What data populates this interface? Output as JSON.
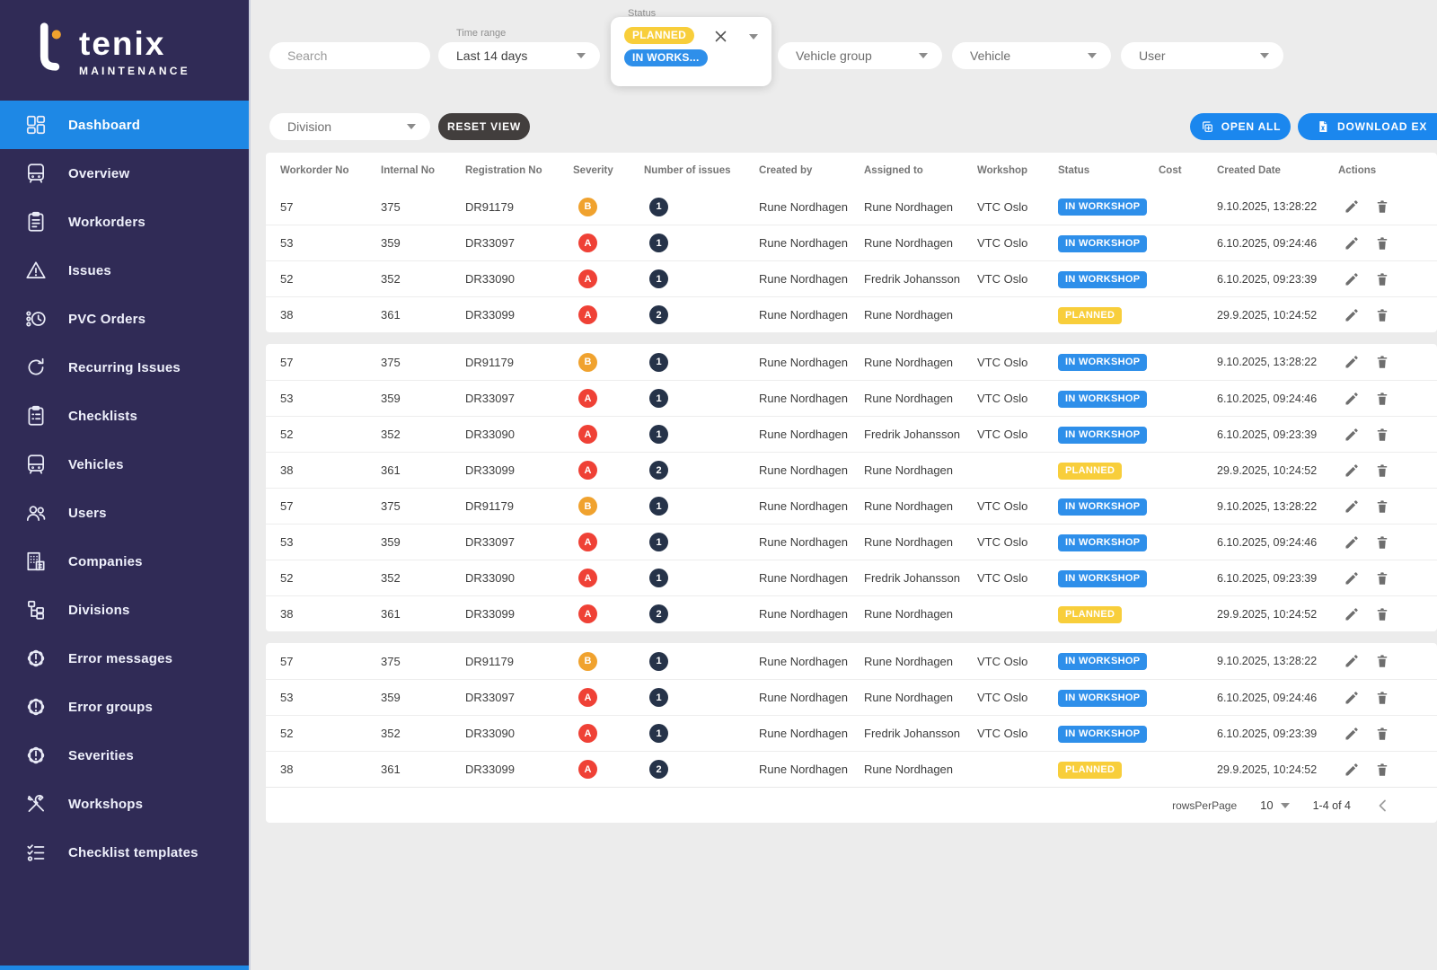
{
  "brand": {
    "name": "tenix",
    "subtitle": "MAINTENANCE"
  },
  "sidebar": {
    "items": [
      {
        "id": "dashboard",
        "label": "Dashboard",
        "icon": "dashboard",
        "active": true
      },
      {
        "id": "overview",
        "label": "Overview",
        "icon": "bus",
        "active": false
      },
      {
        "id": "workorders",
        "label": "Workorders",
        "icon": "clipboard",
        "active": false
      },
      {
        "id": "issues",
        "label": "Issues",
        "icon": "warning-triangle",
        "active": false
      },
      {
        "id": "pvc-orders",
        "label": "PVC Orders",
        "icon": "fan-clock",
        "active": false
      },
      {
        "id": "recurring-issues",
        "label": "Recurring Issues",
        "icon": "refresh",
        "active": false
      },
      {
        "id": "checklists",
        "label": "Checklists",
        "icon": "checklist-board",
        "active": false
      },
      {
        "id": "vehicles",
        "label": "Vehicles",
        "icon": "bus",
        "active": false
      },
      {
        "id": "users",
        "label": "Users",
        "icon": "users",
        "active": false
      },
      {
        "id": "companies",
        "label": "Companies",
        "icon": "building",
        "active": false
      },
      {
        "id": "divisions",
        "label": "Divisions",
        "icon": "org-tree",
        "active": false
      },
      {
        "id": "error-messages",
        "label": "Error messages",
        "icon": "badge-exclamation",
        "active": false
      },
      {
        "id": "error-groups",
        "label": "Error groups",
        "icon": "badge-exclamation",
        "active": false
      },
      {
        "id": "severities",
        "label": "Severities",
        "icon": "badge-exclamation",
        "active": false
      },
      {
        "id": "workshops",
        "label": "Workshops",
        "icon": "tools",
        "active": false
      },
      {
        "id": "checklist-templates",
        "label": "Checklist templates",
        "icon": "checklist-lines",
        "active": false
      }
    ]
  },
  "filters": {
    "search_placeholder": "Search",
    "time_range": {
      "label": "Time range",
      "value": "Last 14 days"
    },
    "status": {
      "label": "Status",
      "chips": [
        {
          "label": "PLANNED",
          "color": "#f8ce3b"
        },
        {
          "label": "IN WORKS...",
          "color": "#2e8fea"
        }
      ]
    },
    "vehicle_group_label": "Vehicle group",
    "vehicle_label": "Vehicle",
    "user_label": "User",
    "division_label": "Division",
    "reset_view_label": "RESET VIEW",
    "open_all_label": "OPEN ALL",
    "download_label": "DOWNLOAD EX"
  },
  "table": {
    "columns": [
      "Workorder No",
      "Internal No",
      "Registration No",
      "Severity",
      "Number of issues",
      "Created by",
      "Assigned to",
      "Workshop",
      "Status",
      "Cost",
      "Created Date",
      "Actions"
    ],
    "issues_badge_color": "#263349",
    "sections": [
      {
        "rows": [
          {
            "workorder_no": "57",
            "internal_no": "375",
            "registration_no": "DR91179",
            "severity": "B",
            "severity_color": "#f0a22e",
            "issues": "1",
            "created_by": "Rune Nordhagen",
            "assigned_to": "Rune Nordhagen",
            "workshop": "VTC Oslo",
            "status": "IN WORKSHOP",
            "status_color": "#2e8fea",
            "cost": "",
            "created_date": "9.10.2025, 13:28:22"
          },
          {
            "workorder_no": "53",
            "internal_no": "359",
            "registration_no": "DR33097",
            "severity": "A",
            "severity_color": "#ef4136",
            "issues": "1",
            "created_by": "Rune Nordhagen",
            "assigned_to": "Rune Nordhagen",
            "workshop": "VTC Oslo",
            "status": "IN WORKSHOP",
            "status_color": "#2e8fea",
            "cost": "",
            "created_date": "6.10.2025, 09:24:46"
          },
          {
            "workorder_no": "52",
            "internal_no": "352",
            "registration_no": "DR33090",
            "severity": "A",
            "severity_color": "#ef4136",
            "issues": "1",
            "created_by": "Rune Nordhagen",
            "assigned_to": "Fredrik Johansson",
            "workshop": "VTC Oslo",
            "status": "IN WORKSHOP",
            "status_color": "#2e8fea",
            "cost": "",
            "created_date": "6.10.2025, 09:23:39"
          },
          {
            "workorder_no": "38",
            "internal_no": "361",
            "registration_no": "DR33099",
            "severity": "A",
            "severity_color": "#ef4136",
            "issues": "2",
            "created_by": "Rune Nordhagen",
            "assigned_to": "Rune Nordhagen",
            "workshop": "",
            "status": "PLANNED",
            "status_color": "#f8ce3b",
            "cost": "",
            "created_date": "29.9.2025, 10:24:52"
          }
        ]
      },
      {
        "rows": [
          {
            "workorder_no": "57",
            "internal_no": "375",
            "registration_no": "DR91179",
            "severity": "B",
            "severity_color": "#f0a22e",
            "issues": "1",
            "created_by": "Rune Nordhagen",
            "assigned_to": "Rune Nordhagen",
            "workshop": "VTC Oslo",
            "status": "IN WORKSHOP",
            "status_color": "#2e8fea",
            "cost": "",
            "created_date": "9.10.2025, 13:28:22"
          },
          {
            "workorder_no": "53",
            "internal_no": "359",
            "registration_no": "DR33097",
            "severity": "A",
            "severity_color": "#ef4136",
            "issues": "1",
            "created_by": "Rune Nordhagen",
            "assigned_to": "Rune Nordhagen",
            "workshop": "VTC Oslo",
            "status": "IN WORKSHOP",
            "status_color": "#2e8fea",
            "cost": "",
            "created_date": "6.10.2025, 09:24:46"
          },
          {
            "workorder_no": "52",
            "internal_no": "352",
            "registration_no": "DR33090",
            "severity": "A",
            "severity_color": "#ef4136",
            "issues": "1",
            "created_by": "Rune Nordhagen",
            "assigned_to": "Fredrik Johansson",
            "workshop": "VTC Oslo",
            "status": "IN WORKSHOP",
            "status_color": "#2e8fea",
            "cost": "",
            "created_date": "6.10.2025, 09:23:39"
          },
          {
            "workorder_no": "38",
            "internal_no": "361",
            "registration_no": "DR33099",
            "severity": "A",
            "severity_color": "#ef4136",
            "issues": "2",
            "created_by": "Rune Nordhagen",
            "assigned_to": "Rune Nordhagen",
            "workshop": "",
            "status": "PLANNED",
            "status_color": "#f8ce3b",
            "cost": "",
            "created_date": "29.9.2025, 10:24:52"
          },
          {
            "workorder_no": "57",
            "internal_no": "375",
            "registration_no": "DR91179",
            "severity": "B",
            "severity_color": "#f0a22e",
            "issues": "1",
            "created_by": "Rune Nordhagen",
            "assigned_to": "Rune Nordhagen",
            "workshop": "VTC Oslo",
            "status": "IN WORKSHOP",
            "status_color": "#2e8fea",
            "cost": "",
            "created_date": "9.10.2025, 13:28:22"
          },
          {
            "workorder_no": "53",
            "internal_no": "359",
            "registration_no": "DR33097",
            "severity": "A",
            "severity_color": "#ef4136",
            "issues": "1",
            "created_by": "Rune Nordhagen",
            "assigned_to": "Rune Nordhagen",
            "workshop": "VTC Oslo",
            "status": "IN WORKSHOP",
            "status_color": "#2e8fea",
            "cost": "",
            "created_date": "6.10.2025, 09:24:46"
          },
          {
            "workorder_no": "52",
            "internal_no": "352",
            "registration_no": "DR33090",
            "severity": "A",
            "severity_color": "#ef4136",
            "issues": "1",
            "created_by": "Rune Nordhagen",
            "assigned_to": "Fredrik Johansson",
            "workshop": "VTC Oslo",
            "status": "IN WORKSHOP",
            "status_color": "#2e8fea",
            "cost": "",
            "created_date": "6.10.2025, 09:23:39"
          },
          {
            "workorder_no": "38",
            "internal_no": "361",
            "registration_no": "DR33099",
            "severity": "A",
            "severity_color": "#ef4136",
            "issues": "2",
            "created_by": "Rune Nordhagen",
            "assigned_to": "Rune Nordhagen",
            "workshop": "",
            "status": "PLANNED",
            "status_color": "#f8ce3b",
            "cost": "",
            "created_date": "29.9.2025, 10:24:52"
          }
        ]
      },
      {
        "rows": [
          {
            "workorder_no": "57",
            "internal_no": "375",
            "registration_no": "DR91179",
            "severity": "B",
            "severity_color": "#f0a22e",
            "issues": "1",
            "created_by": "Rune Nordhagen",
            "assigned_to": "Rune Nordhagen",
            "workshop": "VTC Oslo",
            "status": "IN WORKSHOP",
            "status_color": "#2e8fea",
            "cost": "",
            "created_date": "9.10.2025, 13:28:22"
          },
          {
            "workorder_no": "53",
            "internal_no": "359",
            "registration_no": "DR33097",
            "severity": "A",
            "severity_color": "#ef4136",
            "issues": "1",
            "created_by": "Rune Nordhagen",
            "assigned_to": "Rune Nordhagen",
            "workshop": "VTC Oslo",
            "status": "IN WORKSHOP",
            "status_color": "#2e8fea",
            "cost": "",
            "created_date": "6.10.2025, 09:24:46"
          },
          {
            "workorder_no": "52",
            "internal_no": "352",
            "registration_no": "DR33090",
            "severity": "A",
            "severity_color": "#ef4136",
            "issues": "1",
            "created_by": "Rune Nordhagen",
            "assigned_to": "Fredrik Johansson",
            "workshop": "VTC Oslo",
            "status": "IN WORKSHOP",
            "status_color": "#2e8fea",
            "cost": "",
            "created_date": "6.10.2025, 09:23:39"
          },
          {
            "workorder_no": "38",
            "internal_no": "361",
            "registration_no": "DR33099",
            "severity": "A",
            "severity_color": "#ef4136",
            "issues": "2",
            "created_by": "Rune Nordhagen",
            "assigned_to": "Rune Nordhagen",
            "workshop": "",
            "status": "PLANNED",
            "status_color": "#f8ce3b",
            "cost": "",
            "created_date": "29.9.2025, 10:24:52"
          }
        ]
      }
    ]
  },
  "pagination": {
    "rows_per_page_label": "rowsPerPage",
    "rows_per_page_value": "10",
    "range_text": "1-4 of 4"
  }
}
